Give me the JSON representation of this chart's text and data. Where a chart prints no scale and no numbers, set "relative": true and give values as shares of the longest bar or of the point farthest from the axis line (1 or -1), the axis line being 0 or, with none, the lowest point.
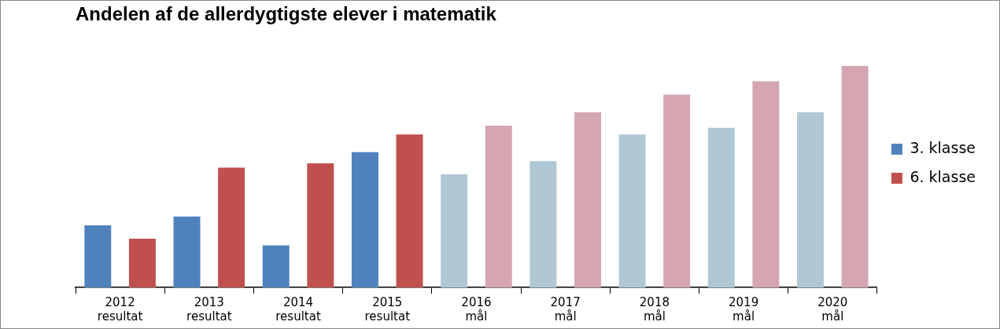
{
  "chart_data": {
    "type": "bar",
    "title": "Andelen af de allerdygtigste elever i matematik",
    "relative": true,
    "legend": "right",
    "categories": [
      "2012\nresultat",
      "2013\nresultat",
      "2014\nresultat",
      "2015\nresultat",
      "2016\nmål",
      "2017\nmål",
      "2018\nmål",
      "2019\nmål",
      "2020\nmål"
    ],
    "series": [
      {
        "name": "3. klasse",
        "color": "#4f81bd",
        "colors": [
          "#4f81bd",
          "#4f81bd",
          "#4f81bd",
          "#4f81bd",
          "#b0c8d4",
          "#b0c8d4",
          "#b0c8d4",
          "#b0c8d4",
          "#b0c8d4"
        ],
        "values": [
          0.28,
          0.32,
          0.19,
          0.61,
          0.51,
          0.57,
          0.69,
          0.72,
          0.79
        ]
      },
      {
        "name": "6. klasse",
        "color": "#c0504d",
        "colors": [
          "#c0504d",
          "#c0504d",
          "#c0504d",
          "#c0504d",
          "#d5a5b2",
          "#d5a5b2",
          "#d5a5b2",
          "#d5a5b2",
          "#d5a5b2"
        ],
        "values": [
          0.22,
          0.54,
          0.56,
          0.69,
          0.73,
          0.79,
          0.87,
          0.93,
          1
        ]
      }
    ]
  }
}
